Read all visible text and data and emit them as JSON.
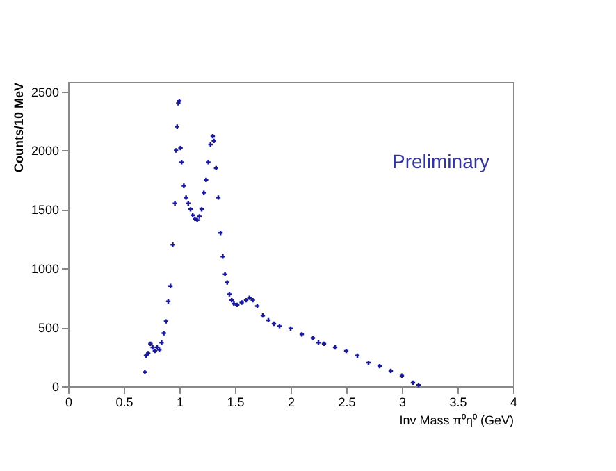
{
  "chart_data": {
    "type": "scatter",
    "xlabel": "Inv Mass π⁰η⁰ (GeV)",
    "ylabel": "Counts/10 MeV",
    "annotations": [
      "Preliminary"
    ],
    "x": [
      0.69,
      0.7,
      0.72,
      0.74,
      0.76,
      0.78,
      0.8,
      0.82,
      0.84,
      0.86,
      0.88,
      0.9,
      0.92,
      0.94,
      0.96,
      0.97,
      0.98,
      0.99,
      1.0,
      1.01,
      1.02,
      1.04,
      1.06,
      1.08,
      1.1,
      1.12,
      1.14,
      1.16,
      1.18,
      1.2,
      1.22,
      1.24,
      1.26,
      1.28,
      1.3,
      1.31,
      1.33,
      1.35,
      1.37,
      1.39,
      1.41,
      1.43,
      1.45,
      1.47,
      1.49,
      1.52,
      1.56,
      1.6,
      1.63,
      1.66,
      1.7,
      1.75,
      1.8,
      1.85,
      1.9,
      2.0,
      2.1,
      2.2,
      2.25,
      2.3,
      2.4,
      2.5,
      2.6,
      2.7,
      2.8,
      2.9,
      3.0,
      3.1,
      3.15
    ],
    "series": [
      {
        "color": "#1a1a99",
        "values": [
          120,
          260,
          280,
          360,
          330,
          300,
          330,
          310,
          370,
          450,
          550,
          720,
          850,
          1200,
          1550,
          2000,
          2200,
          2400,
          2420,
          2020,
          1900,
          1700,
          1600,
          1550,
          1500,
          1450,
          1420,
          1410,
          1440,
          1500,
          1640,
          1750,
          1900,
          2050,
          2120,
          2080,
          1850,
          1600,
          1300,
          1100,
          950,
          880,
          780,
          730,
          700,
          690,
          710,
          730,
          750,
          730,
          680,
          600,
          560,
          530,
          510,
          490,
          440,
          410,
          370,
          360,
          330,
          300,
          260,
          200,
          170,
          130,
          90,
          30,
          10
        ]
      }
    ],
    "xlim": [
      0,
      4
    ],
    "xticks": [
      0,
      0.5,
      1,
      1.5,
      2,
      2.5,
      3,
      3.5,
      4
    ],
    "ylim": [
      0,
      2580
    ],
    "yticks": [
      0,
      500,
      1000,
      1500,
      2000,
      2500
    ],
    "grid": false,
    "marker": "cross"
  }
}
